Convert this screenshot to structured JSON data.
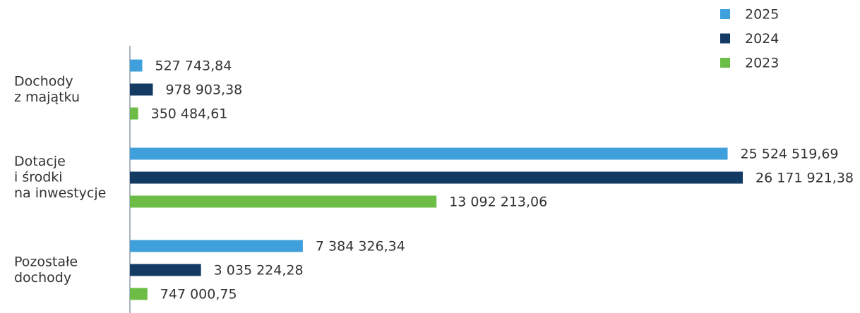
{
  "chart_data": {
    "type": "hbar",
    "categories": [
      [
        "Dochody",
        "z majątku"
      ],
      [
        "Dotacje",
        "i środki",
        "na inwestycje"
      ],
      [
        "Pozostałe",
        "dochody"
      ]
    ],
    "series": [
      {
        "name": "2025",
        "color": "#3fa0db",
        "values": [
          527743.84,
          25524519.69,
          7384326.34
        ],
        "value_labels": [
          "527 743,84",
          "25 524 519,69",
          "7 384 326,34"
        ]
      },
      {
        "name": "2024",
        "color": "#123a63",
        "values": [
          978903.38,
          26171921.38,
          3035224.28
        ],
        "value_labels": [
          "978 903,38",
          "26 171 921,38",
          "3 035 224,28"
        ]
      },
      {
        "name": "2023",
        "color": "#6cbd45",
        "values": [
          350484.61,
          13092213.06,
          747000.75
        ],
        "value_labels": [
          "350 484,61",
          "13 092 213,06",
          "747 000,75"
        ]
      }
    ],
    "legend": "top-right"
  }
}
